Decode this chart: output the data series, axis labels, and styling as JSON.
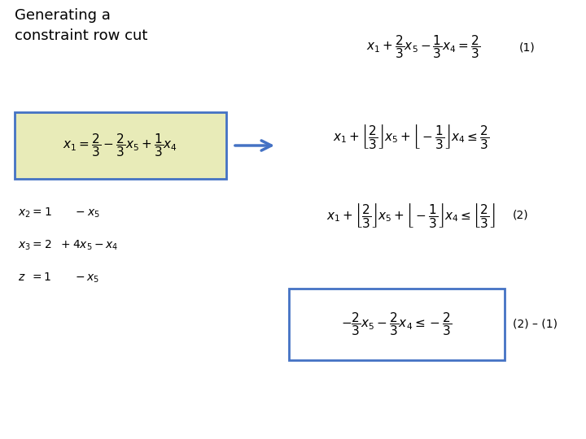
{
  "title": "Generating a\nconstraint row cut",
  "title_fontsize": 13,
  "bg_color": "#ffffff",
  "box1_color_bg": "#e8ebb8",
  "box1_color_edge": "#4472c4",
  "box2_color_bg": "#ffffff",
  "box2_color_edge": "#4472c4",
  "arrow_color": "#4472c4",
  "label_1": "(1)",
  "label_2": "(2)",
  "label_21": "(2) – (1)",
  "eq_fontsize": 11,
  "small_eq_fontsize": 10,
  "label_fontsize": 10
}
